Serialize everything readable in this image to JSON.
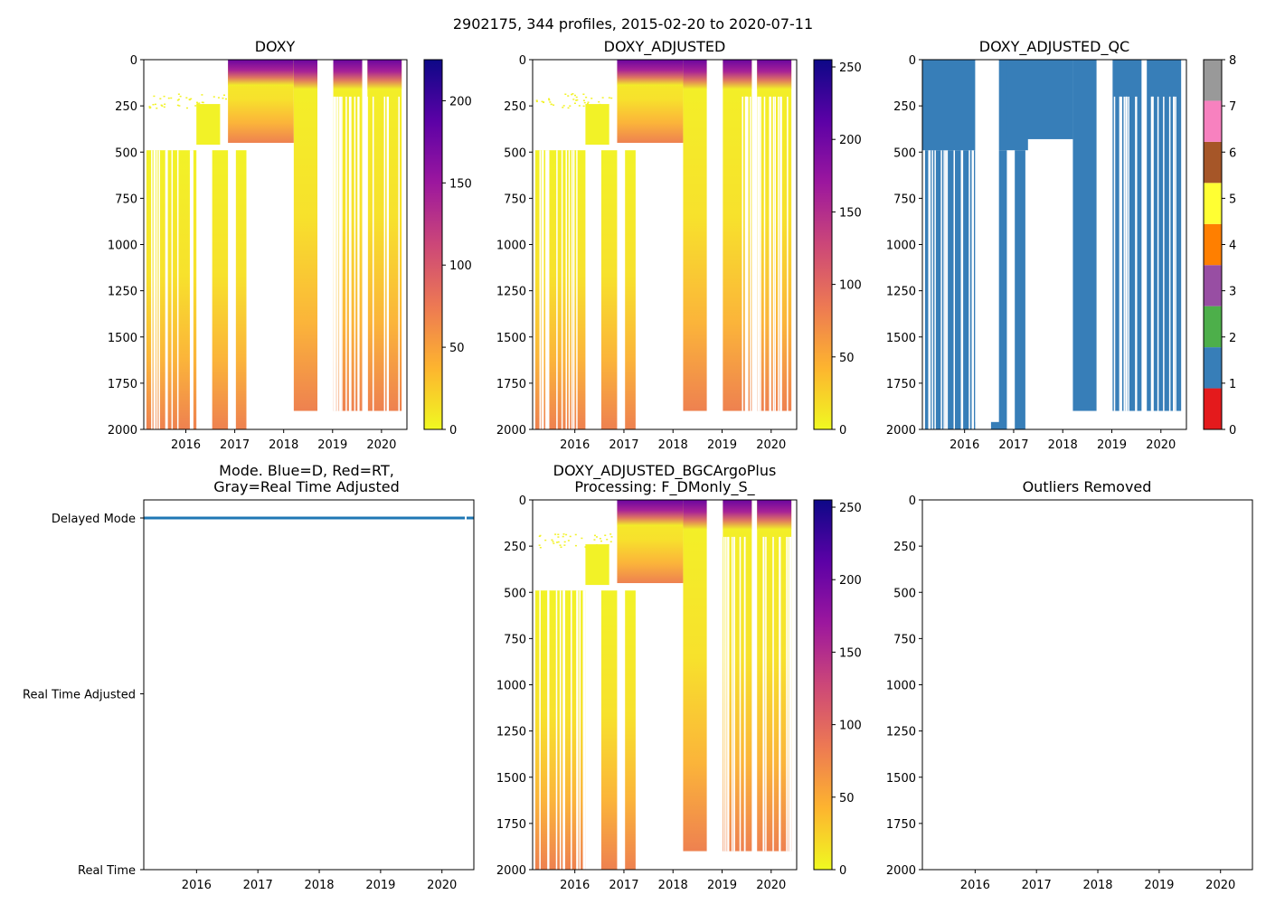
{
  "figure": {
    "suptitle": "2902175, 344 profiles, 2015-02-20 to 2020-07-11"
  },
  "colors": {
    "plasma_stops": [
      "#f0f921",
      "#fdb42f",
      "#ed7953",
      "#cc4778",
      "#9c179e",
      "#5c01a6",
      "#0d0887"
    ],
    "qc_colors": [
      "#e41a1c",
      "#377eb8",
      "#4daf4a",
      "#984ea3",
      "#ff7f00",
      "#ffff33",
      "#a65628",
      "#f781bf",
      "#999999"
    ],
    "mode_marker": "#1f77b4"
  },
  "chart_data": [
    {
      "id": "doxy",
      "type": "heatmap",
      "title": "DOXY",
      "x_ticks": [
        "2016",
        "2017",
        "2018",
        "2019",
        "2020"
      ],
      "x_tick_values": [
        2016,
        2017,
        2018,
        2019,
        2020
      ],
      "xlim": [
        2015.14,
        2020.52
      ],
      "y_ticks": [
        0,
        250,
        500,
        750,
        1000,
        1250,
        1500,
        1750,
        2000
      ],
      "ylim": [
        2000,
        0
      ],
      "colorbar": {
        "ticks": [
          0,
          50,
          100,
          150,
          200
        ],
        "range": [
          0,
          225
        ]
      }
    },
    {
      "id": "doxy-adjusted",
      "type": "heatmap",
      "title": "DOXY_ADJUSTED",
      "x_ticks": [
        "2016",
        "2017",
        "2018",
        "2019",
        "2020"
      ],
      "x_tick_values": [
        2016,
        2017,
        2018,
        2019,
        2020
      ],
      "xlim": [
        2015.14,
        2020.52
      ],
      "y_ticks": [
        0,
        250,
        500,
        750,
        1000,
        1250,
        1500,
        1750,
        2000
      ],
      "ylim": [
        2000,
        0
      ],
      "colorbar": {
        "ticks": [
          0,
          50,
          100,
          150,
          200,
          250
        ],
        "range": [
          0,
          255
        ]
      }
    },
    {
      "id": "doxy-adjusted-qc",
      "type": "heatmap",
      "title": "DOXY_ADJUSTED_QC",
      "x_ticks": [
        "2016",
        "2017",
        "2018",
        "2019",
        "2020"
      ],
      "x_tick_values": [
        2016,
        2017,
        2018,
        2019,
        2020
      ],
      "xlim": [
        2015.14,
        2020.52
      ],
      "y_ticks": [
        0,
        250,
        500,
        750,
        1000,
        1250,
        1500,
        1750,
        2000
      ],
      "ylim": [
        2000,
        0
      ],
      "dominant_qc_flag": 1,
      "colorbar": {
        "ticks": [
          0,
          1,
          2,
          3,
          4,
          5,
          6,
          7,
          8
        ],
        "categories": 9
      }
    },
    {
      "id": "mode",
      "type": "scatter",
      "title_line1": "Mode. Blue=D, Red=RT,",
      "title_line2": "Gray=Real Time Adjusted",
      "categories": [
        "Delayed Mode",
        "Real Time Adjusted",
        "Real Time"
      ],
      "x_ticks": [
        "2016",
        "2017",
        "2018",
        "2019",
        "2020"
      ],
      "x_tick_values": [
        2016,
        2017,
        2018,
        2019,
        2020
      ],
      "xlim": [
        2015.14,
        2020.52
      ],
      "series": [
        {
          "name": "Delayed Mode",
          "category": "Delayed Mode",
          "x_range": [
            2015.14,
            2020.52
          ]
        }
      ]
    },
    {
      "id": "bgc-plus",
      "type": "heatmap",
      "title_line1": "DOXY_ADJUSTED_BGCArgoPlus",
      "title_line2": "Processing: F_DMonly_S_",
      "x_ticks": [
        "2016",
        "2017",
        "2018",
        "2019",
        "2020"
      ],
      "x_tick_values": [
        2016,
        2017,
        2018,
        2019,
        2020
      ],
      "xlim": [
        2015.14,
        2020.52
      ],
      "y_ticks": [
        0,
        250,
        500,
        750,
        1000,
        1250,
        1500,
        1750,
        2000
      ],
      "ylim": [
        2000,
        0
      ],
      "colorbar": {
        "ticks": [
          0,
          50,
          100,
          150,
          200,
          250
        ],
        "range": [
          0,
          255
        ]
      }
    },
    {
      "id": "outliers",
      "type": "scatter",
      "title": "Outliers Removed",
      "x_ticks": [
        "2016",
        "2017",
        "2018",
        "2019",
        "2020"
      ],
      "x_tick_values": [
        2016,
        2017,
        2018,
        2019,
        2020
      ],
      "xlim": [
        2015.14,
        2020.52
      ],
      "y_ticks": [
        0,
        250,
        500,
        750,
        1000,
        1250,
        1500,
        1750,
        2000
      ],
      "ylim": [
        2000,
        0
      ],
      "series": []
    }
  ]
}
